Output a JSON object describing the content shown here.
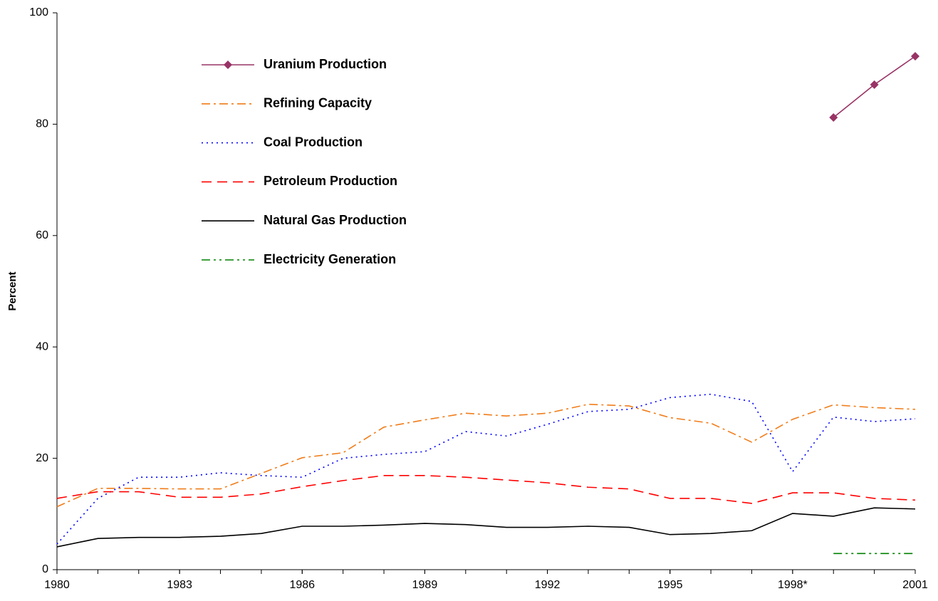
{
  "chart_data": {
    "type": "line",
    "y_label": "Percent",
    "x": [
      1980,
      1981,
      1982,
      1983,
      1984,
      1985,
      1986,
      1987,
      1988,
      1989,
      1990,
      1991,
      1992,
      1993,
      1994,
      1995,
      1996,
      1997,
      1998,
      1999,
      2000,
      2001
    ],
    "xlim": [
      1980,
      2001
    ],
    "xticks": [
      1980,
      1983,
      1986,
      1989,
      1992,
      1995,
      {
        "value": 1998,
        "label": "1998*"
      },
      2001
    ],
    "ylim": [
      0,
      100
    ],
    "yticks": [
      0,
      20,
      40,
      60,
      80,
      100
    ],
    "grid": false,
    "legend": "upper left",
    "series": [
      {
        "name": "Uranium Production",
        "color": "#993366",
        "line_style": "solid",
        "marker": "diamond",
        "values": [
          null,
          null,
          null,
          null,
          null,
          null,
          null,
          null,
          null,
          null,
          null,
          null,
          null,
          null,
          null,
          null,
          null,
          null,
          null,
          81.2,
          87.1,
          92.2
        ]
      },
      {
        "name": "Refining Capacity",
        "color": "#f07d1a",
        "line_style": "dash-dot",
        "values": [
          11.3,
          14.6,
          14.6,
          14.5,
          14.5,
          17.3,
          20.1,
          21.0,
          25.6,
          26.9,
          28.1,
          27.6,
          28.1,
          29.7,
          29.4,
          27.3,
          26.3,
          22.9,
          27.0,
          29.6,
          29.1,
          28.8
        ]
      },
      {
        "name": "Coal Production",
        "color": "#0000ff",
        "line_style": "dotted",
        "values": [
          4.6,
          12.8,
          16.6,
          16.6,
          17.4,
          16.9,
          16.6,
          20.0,
          20.7,
          21.2,
          24.8,
          24.0,
          26.1,
          28.4,
          28.8,
          30.9,
          31.5,
          30.2,
          17.6,
          27.4,
          26.6,
          27.1
        ]
      },
      {
        "name": "Petroleum Production",
        "color": "#ff0000",
        "line_style": "dashed",
        "values": [
          12.8,
          14.0,
          14.0,
          13.0,
          13.0,
          13.6,
          14.9,
          16.0,
          16.9,
          16.9,
          16.6,
          16.1,
          15.6,
          14.8,
          14.5,
          12.8,
          12.8,
          11.9,
          13.8,
          13.8,
          12.8,
          12.5
        ]
      },
      {
        "name": "Natural Gas Production",
        "color": "#000000",
        "line_style": "solid",
        "values": [
          4.1,
          5.6,
          5.8,
          5.8,
          6.0,
          6.5,
          7.8,
          7.8,
          8.0,
          8.3,
          8.1,
          7.6,
          7.6,
          7.8,
          7.6,
          6.3,
          6.5,
          7.0,
          10.1,
          9.6,
          11.1,
          10.9
        ]
      },
      {
        "name": "Electricity Generation",
        "color": "#008000",
        "line_style": "dash-dot-dot",
        "values": [
          null,
          null,
          null,
          null,
          null,
          null,
          null,
          null,
          null,
          null,
          null,
          null,
          null,
          null,
          null,
          null,
          null,
          null,
          null,
          2.9,
          2.9,
          2.9
        ]
      }
    ]
  }
}
